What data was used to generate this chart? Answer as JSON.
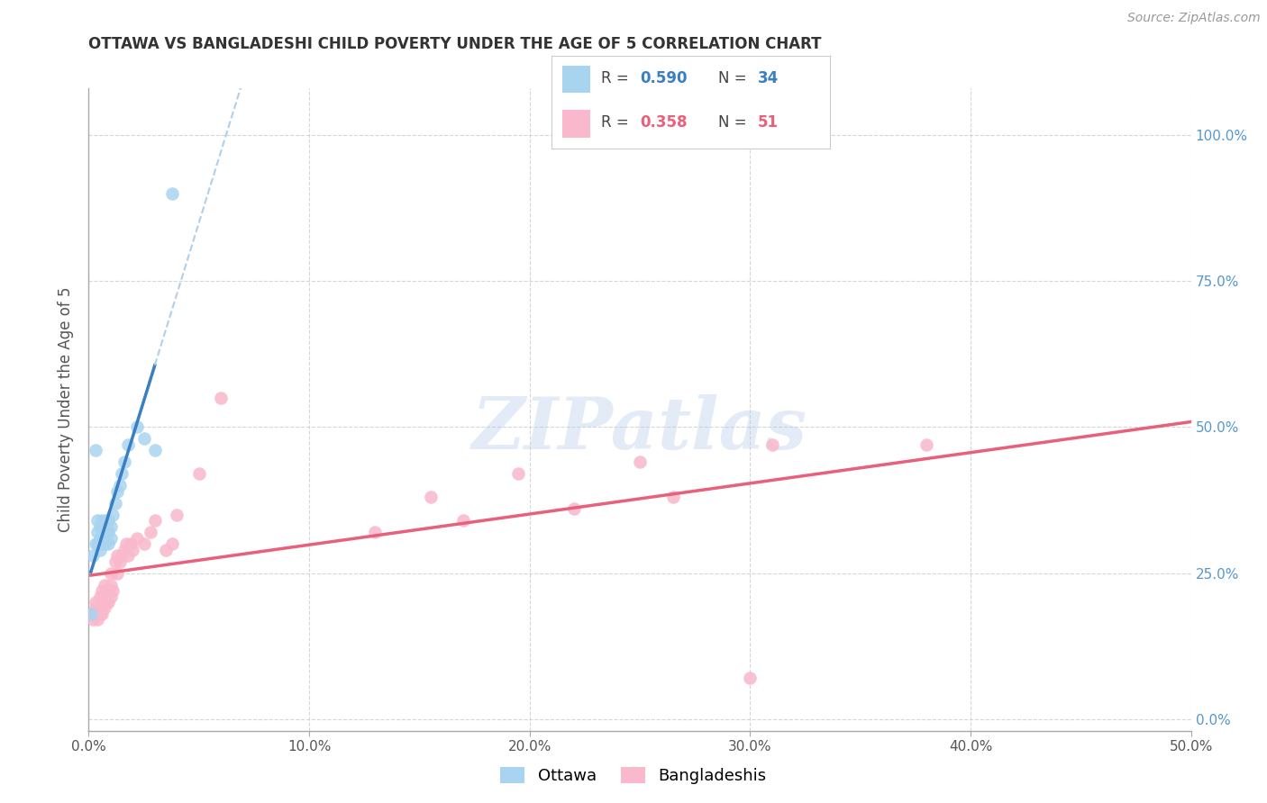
{
  "title": "OTTAWA VS BANGLADESHI CHILD POVERTY UNDER THE AGE OF 5 CORRELATION CHART",
  "source": "Source: ZipAtlas.com",
  "ylabel": "Child Poverty Under the Age of 5",
  "xlim": [
    0.0,
    0.5
  ],
  "ylim": [
    -0.02,
    1.08
  ],
  "ottawa_color": "#a8d4f0",
  "bangla_color": "#f9b8cc",
  "ottawa_line_color": "#3a7fc1",
  "bangla_line_color": "#e8607a",
  "ottawa_dashed_color": "#b0cfe8",
  "background_color": "#ffffff",
  "grid_color": "#cccccc",
  "ottawa_R": "0.590",
  "ottawa_N": "34",
  "bangla_R": "0.358",
  "bangla_N": "51",
  "ottawa_x": [
    0.001,
    0.002,
    0.003,
    0.003,
    0.004,
    0.004,
    0.004,
    0.005,
    0.005,
    0.005,
    0.006,
    0.006,
    0.006,
    0.007,
    0.007,
    0.007,
    0.008,
    0.008,
    0.009,
    0.009,
    0.009,
    0.01,
    0.01,
    0.011,
    0.012,
    0.013,
    0.014,
    0.015,
    0.016,
    0.018,
    0.022,
    0.025,
    0.03,
    0.038
  ],
  "ottawa_y": [
    0.18,
    0.28,
    0.3,
    0.46,
    0.3,
    0.32,
    0.34,
    0.29,
    0.31,
    0.33,
    0.3,
    0.32,
    0.34,
    0.3,
    0.31,
    0.33,
    0.32,
    0.34,
    0.3,
    0.32,
    0.34,
    0.31,
    0.33,
    0.35,
    0.37,
    0.39,
    0.4,
    0.42,
    0.44,
    0.47,
    0.5,
    0.48,
    0.46,
    0.9
  ],
  "bangla_x": [
    0.001,
    0.002,
    0.003,
    0.003,
    0.004,
    0.004,
    0.005,
    0.005,
    0.006,
    0.006,
    0.006,
    0.007,
    0.007,
    0.007,
    0.008,
    0.008,
    0.009,
    0.009,
    0.01,
    0.01,
    0.01,
    0.011,
    0.012,
    0.013,
    0.013,
    0.014,
    0.015,
    0.016,
    0.017,
    0.018,
    0.019,
    0.02,
    0.022,
    0.025,
    0.028,
    0.03,
    0.035,
    0.038,
    0.04,
    0.05,
    0.06,
    0.13,
    0.155,
    0.17,
    0.195,
    0.22,
    0.25,
    0.265,
    0.3,
    0.31,
    0.38
  ],
  "bangla_y": [
    0.18,
    0.17,
    0.19,
    0.2,
    0.17,
    0.19,
    0.18,
    0.21,
    0.18,
    0.2,
    0.22,
    0.19,
    0.21,
    0.23,
    0.2,
    0.22,
    0.2,
    0.22,
    0.21,
    0.23,
    0.25,
    0.22,
    0.27,
    0.25,
    0.28,
    0.27,
    0.28,
    0.29,
    0.3,
    0.28,
    0.3,
    0.29,
    0.31,
    0.3,
    0.32,
    0.34,
    0.29,
    0.3,
    0.35,
    0.42,
    0.55,
    0.32,
    0.38,
    0.34,
    0.42,
    0.36,
    0.44,
    0.38,
    0.07,
    0.47,
    0.47
  ]
}
